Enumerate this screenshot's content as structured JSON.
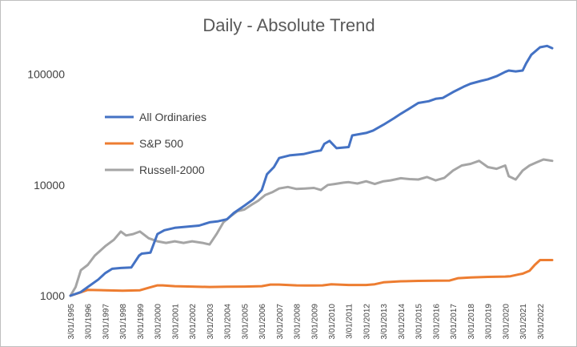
{
  "chart_data": {
    "type": "line",
    "title": "Daily - Absolute Trend",
    "xlabel": "",
    "ylabel": "",
    "y_scale": "log",
    "ylim": [
      1000,
      300000
    ],
    "y_ticks": [
      "1000",
      "10000",
      "100000"
    ],
    "x_ticks": [
      "3/01/1995",
      "3/01/1996",
      "3/01/1997",
      "3/01/1998",
      "3/01/1999",
      "3/01/2000",
      "3/01/2001",
      "3/01/2002",
      "3/01/2003",
      "3/01/2004",
      "3/01/2005",
      "3/01/2006",
      "3/01/2007",
      "3/01/2008",
      "3/01/2009",
      "3/01/2010",
      "3/01/2011",
      "3/01/2012",
      "3/01/2013",
      "3/01/2014",
      "3/01/2015",
      "3/01/2016",
      "3/01/2017",
      "3/01/2018",
      "3/01/2019",
      "3/01/2020",
      "3/01/2021",
      "3/01/2022"
    ],
    "xlim": [
      1995.0,
      2022.7
    ],
    "grid": false,
    "legend_position": "left",
    "series": [
      {
        "name": "All Ordinaries",
        "color": "#4472C4",
        "x": [
          1995.0,
          1995.6,
          1996.0,
          1996.6,
          1997.0,
          1997.4,
          1997.9,
          1998.5,
          1998.95,
          1999.1,
          1999.6,
          2000.0,
          2000.4,
          2001.0,
          2001.7,
          2002.4,
          2003.0,
          2003.5,
          2004.0,
          2004.4,
          2005.0,
          2005.5,
          2006.0,
          2006.3,
          2006.7,
          2007.0,
          2007.6,
          2008.4,
          2009.0,
          2009.4,
          2009.6,
          2009.9,
          2010.3,
          2011.0,
          2011.2,
          2012.0,
          2012.4,
          2013.0,
          2013.6,
          2014.0,
          2014.4,
          2015.0,
          2015.6,
          2016.0,
          2016.4,
          2017.0,
          2017.6,
          2018.0,
          2018.6,
          2019.0,
          2019.5,
          2020.0,
          2020.2,
          2020.6,
          2021.0,
          2021.2,
          2021.5,
          2022.0,
          2022.4,
          2022.7
        ],
        "values": [
          1000,
          1080,
          1200,
          1400,
          1600,
          1750,
          1780,
          1800,
          2300,
          2400,
          2450,
          3600,
          3900,
          4100,
          4200,
          4300,
          4600,
          4700,
          4900,
          5600,
          6500,
          7400,
          9000,
          12500,
          14500,
          17500,
          18500,
          19000,
          20000,
          20500,
          23500,
          25000,
          21500,
          22000,
          28000,
          29500,
          31000,
          35000,
          40000,
          44000,
          48000,
          55000,
          57000,
          60000,
          61000,
          69000,
          77000,
          82000,
          87000,
          90000,
          96000,
          105000,
          108000,
          106000,
          108000,
          125000,
          150000,
          175000,
          180000,
          172000
        ]
      },
      {
        "name": "S&P 500",
        "color": "#ED7D31",
        "x": [
          1995.0,
          1995.5,
          1996.0,
          1997.0,
          1998.0,
          1999.0,
          1999.5,
          2000.0,
          2000.3,
          2001.0,
          2002.0,
          2003.0,
          2004.0,
          2005.0,
          2006.0,
          2006.5,
          2007.0,
          2008.0,
          2009.0,
          2009.5,
          2010.0,
          2011.0,
          2012.0,
          2012.5,
          2013.0,
          2014.0,
          2015.0,
          2016.0,
          2016.8,
          2017.3,
          2018.0,
          2019.0,
          2020.0,
          2020.3,
          2020.8,
          2021.0,
          2021.4,
          2021.7,
          2022.0,
          2022.7
        ],
        "values": [
          1000,
          1060,
          1130,
          1120,
          1110,
          1120,
          1180,
          1240,
          1240,
          1220,
          1210,
          1200,
          1205,
          1210,
          1220,
          1260,
          1260,
          1240,
          1235,
          1240,
          1270,
          1250,
          1250,
          1270,
          1320,
          1350,
          1360,
          1365,
          1370,
          1440,
          1460,
          1480,
          1490,
          1500,
          1560,
          1580,
          1680,
          1900,
          2100,
          2100
        ]
      },
      {
        "name": "Russell-2000",
        "color": "#A5A5A5",
        "x": [
          1995.0,
          1995.3,
          1995.6,
          1996.0,
          1996.4,
          1997.0,
          1997.5,
          1997.9,
          1998.2,
          1998.6,
          1999.0,
          1999.5,
          2000.0,
          2000.5,
          2001.0,
          2001.5,
          2002.0,
          2002.6,
          2003.0,
          2003.4,
          2003.8,
          2004.2,
          2004.6,
          2005.0,
          2005.4,
          2005.8,
          2006.2,
          2006.6,
          2007.0,
          2007.5,
          2008.0,
          2008.5,
          2009.0,
          2009.4,
          2009.8,
          2010.2,
          2010.7,
          2011.0,
          2011.5,
          2012.0,
          2012.5,
          2013.0,
          2013.4,
          2014.0,
          2014.5,
          2015.0,
          2015.5,
          2016.0,
          2016.5,
          2017.0,
          2017.5,
          2018.0,
          2018.5,
          2019.0,
          2019.5,
          2020.0,
          2020.2,
          2020.6,
          2021.0,
          2021.4,
          2021.8,
          2022.2,
          2022.7
        ],
        "values": [
          1000,
          1200,
          1700,
          1900,
          2300,
          2800,
          3200,
          3800,
          3500,
          3600,
          3800,
          3300,
          3100,
          3000,
          3100,
          3000,
          3100,
          3000,
          2900,
          3600,
          4600,
          5200,
          5800,
          6000,
          6600,
          7200,
          8100,
          8600,
          9300,
          9600,
          9200,
          9300,
          9400,
          9000,
          10000,
          10200,
          10500,
          10600,
          10300,
          10800,
          10200,
          10800,
          11000,
          11500,
          11300,
          11200,
          11800,
          11000,
          11600,
          13500,
          15000,
          15500,
          16500,
          14500,
          14000,
          15000,
          12000,
          11200,
          13500,
          15000,
          16000,
          17000,
          16500
        ]
      }
    ]
  }
}
